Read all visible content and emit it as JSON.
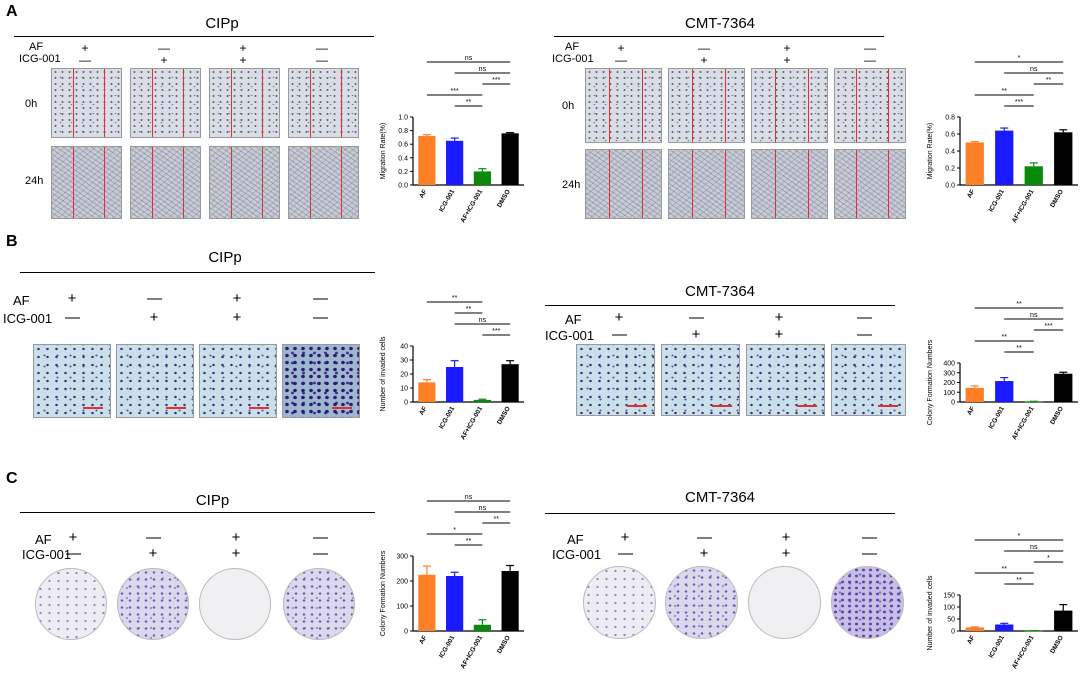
{
  "panels": [
    {
      "letter": "A",
      "left": {
        "title": "CIPp",
        "af_label": "AF",
        "icg_label": "ICG-001",
        "af": [
          "+",
          "—",
          "+",
          "—"
        ],
        "icg": [
          "—",
          "+",
          "+",
          "—"
        ],
        "timepoints": [
          "0h",
          "24h"
        ]
      },
      "right": {
        "title": "CMT-7364",
        "af_label": "AF",
        "icg_label": "ICG-001",
        "af": [
          "+",
          "—",
          "+",
          "—"
        ],
        "icg": [
          "—",
          "+",
          "+",
          "—"
        ],
        "timepoints": [
          "0h",
          "24h"
        ]
      }
    },
    {
      "letter": "B",
      "left": {
        "title": "CIPp",
        "af_label": "AF",
        "icg_label": "ICG-001",
        "af": [
          "+",
          "—",
          "+",
          "—"
        ],
        "icg": [
          "—",
          "+",
          "+",
          "—"
        ]
      },
      "right": {
        "title": "CMT-7364",
        "af_label": "AF",
        "icg_label": "ICG-001",
        "af": [
          "+",
          "—",
          "+",
          "—"
        ],
        "icg": [
          "—",
          "+",
          "+",
          "—"
        ]
      }
    },
    {
      "letter": "C",
      "left": {
        "title": "CIPp",
        "af_label": "AF",
        "icg_label": "ICG-001",
        "af": [
          "+",
          "—",
          "+",
          "—"
        ],
        "icg": [
          "—",
          "+",
          "+",
          "—"
        ]
      },
      "right": {
        "title": "CMT-7364",
        "af_label": "AF",
        "icg_label": "ICG-001",
        "af": [
          "+",
          "—",
          "+",
          "—"
        ],
        "icg": [
          "—",
          "+",
          "+",
          "—"
        ]
      }
    }
  ],
  "colors": {
    "AF": "#ff7f27",
    "ICG-001": "#1a1aff",
    "AF+ICG-001": "#0a8a0a",
    "DMSO": "#000000",
    "scale_bar": "#e03030"
  },
  "chart_data": [
    {
      "id": "A-CIPp",
      "type": "bar",
      "ylabel": "Migration Rate(%)",
      "ylim": [
        0,
        1.0
      ],
      "yticks": [
        0.0,
        0.2,
        0.4,
        0.6,
        0.8,
        1.0
      ],
      "categories": [
        "AF",
        "ICG-001",
        "AF+ICG-001",
        "DMSO"
      ],
      "values": [
        0.72,
        0.65,
        0.2,
        0.76
      ],
      "errors": [
        0.02,
        0.04,
        0.04,
        0.01
      ],
      "comparisons": [
        {
          "from": "AF",
          "to": "DMSO",
          "label": "ns"
        },
        {
          "from": "ICG-001",
          "to": "DMSO",
          "label": "ns"
        },
        {
          "from": "AF+ICG-001",
          "to": "DMSO",
          "label": "***"
        },
        {
          "from": "AF",
          "to": "AF+ICG-001",
          "label": "***"
        },
        {
          "from": "ICG-001",
          "to": "AF+ICG-001",
          "label": "**"
        }
      ]
    },
    {
      "id": "A-CMT7364",
      "type": "bar",
      "ylabel": "Migration Rate(%)",
      "ylim": [
        0,
        0.8
      ],
      "yticks": [
        0.0,
        0.2,
        0.4,
        0.6,
        0.8
      ],
      "categories": [
        "AF",
        "ICG-001",
        "AF+ICG-001",
        "DMSO"
      ],
      "values": [
        0.5,
        0.64,
        0.22,
        0.62
      ],
      "errors": [
        0.01,
        0.03,
        0.04,
        0.03
      ],
      "comparisons": [
        {
          "from": "AF",
          "to": "DMSO",
          "label": "*"
        },
        {
          "from": "ICG-001",
          "to": "DMSO",
          "label": "ns"
        },
        {
          "from": "AF+ICG-001",
          "to": "DMSO",
          "label": "**"
        },
        {
          "from": "AF",
          "to": "AF+ICG-001",
          "label": "**"
        },
        {
          "from": "ICG-001",
          "to": "AF+ICG-001",
          "label": "***"
        }
      ]
    },
    {
      "id": "B-CIPp",
      "type": "bar",
      "ylabel": "Number of invaded cells",
      "ylim": [
        0,
        40
      ],
      "yticks": [
        0,
        10,
        20,
        30,
        40
      ],
      "categories": [
        "AF",
        "ICG-001",
        "AF+ICG-001",
        "DMSO"
      ],
      "values": [
        14,
        25,
        1.5,
        27
      ],
      "errors": [
        2,
        4.5,
        0.5,
        2.5
      ],
      "comparisons": [
        {
          "from": "AF",
          "to": "AF+ICG-001",
          "label": "**"
        },
        {
          "from": "ICG-001",
          "to": "AF+ICG-001",
          "label": "**"
        },
        {
          "from": "ICG-001",
          "to": "DMSO",
          "label": "ns"
        },
        {
          "from": "AF+ICG-001",
          "to": "DMSO",
          "label": "***"
        }
      ]
    },
    {
      "id": "B-CMT7364",
      "type": "bar",
      "ylabel": "Colony Formation Numbers",
      "ylim": [
        0,
        400
      ],
      "yticks": [
        0,
        100,
        200,
        300,
        400
      ],
      "categories": [
        "AF",
        "ICG-001",
        "AF+ICG-001",
        "DMSO"
      ],
      "values": [
        145,
        215,
        5,
        290
      ],
      "errors": [
        20,
        35,
        2,
        15
      ],
      "comparisons": [
        {
          "from": "AF",
          "to": "DMSO",
          "label": "**"
        },
        {
          "from": "ICG-001",
          "to": "DMSO",
          "label": "ns"
        },
        {
          "from": "AF+ICG-001",
          "to": "DMSO",
          "label": "***"
        },
        {
          "from": "AF",
          "to": "AF+ICG-001",
          "label": "**"
        },
        {
          "from": "ICG-001",
          "to": "AF+ICG-001",
          "label": "**"
        }
      ]
    },
    {
      "id": "C-CIPp",
      "type": "bar",
      "ylabel": "Colony Formation Numbers",
      "ylim": [
        0,
        300
      ],
      "yticks": [
        0,
        100,
        200,
        300
      ],
      "categories": [
        "AF",
        "ICG-001",
        "AF+ICG-001",
        "DMSO"
      ],
      "values": [
        225,
        220,
        25,
        240
      ],
      "errors": [
        35,
        15,
        20,
        22
      ],
      "comparisons": [
        {
          "from": "AF",
          "to": "DMSO",
          "label": "ns"
        },
        {
          "from": "ICG-001",
          "to": "DMSO",
          "label": "ns"
        },
        {
          "from": "AF+ICG-001",
          "to": "DMSO",
          "label": "**"
        },
        {
          "from": "AF",
          "to": "AF+ICG-001",
          "label": "*"
        },
        {
          "from": "ICG-001",
          "to": "AF+ICG-001",
          "label": "**"
        }
      ]
    },
    {
      "id": "C-CMT7364",
      "type": "bar",
      "ylabel": "Number of invaded cells",
      "ylim": [
        0,
        150
      ],
      "yticks": [
        0,
        50,
        100,
        150
      ],
      "categories": [
        "AF",
        "ICG-001",
        "AF+ICG-001",
        "DMSO"
      ],
      "values": [
        15,
        27,
        1,
        85
      ],
      "errors": [
        2,
        5,
        0.5,
        25
      ],
      "comparisons": [
        {
          "from": "AF",
          "to": "DMSO",
          "label": "*"
        },
        {
          "from": "ICG-001",
          "to": "DMSO",
          "label": "ns"
        },
        {
          "from": "AF+ICG-001",
          "to": "DMSO",
          "label": "*"
        },
        {
          "from": "AF",
          "to": "AF+ICG-001",
          "label": "**"
        },
        {
          "from": "ICG-001",
          "to": "AF+ICG-001",
          "label": "**"
        }
      ]
    }
  ]
}
